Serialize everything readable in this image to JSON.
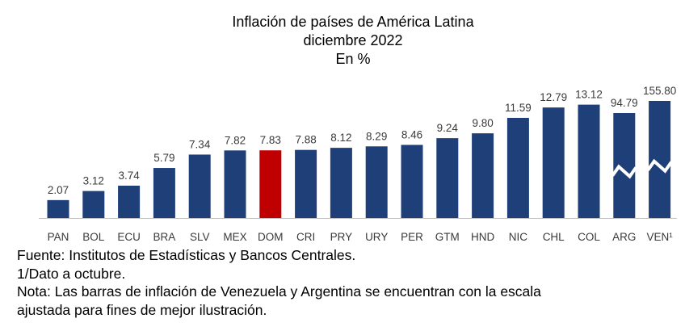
{
  "chart_data": {
    "type": "bar",
    "title": "Inflación de países de América Latina",
    "subtitle": "diciembre 2022",
    "unit_label": "En %",
    "categories": [
      "PAN",
      "BOL",
      "ECU",
      "BRA",
      "SLV",
      "MEX",
      "DOM",
      "CRI",
      "PRY",
      "URY",
      "PER",
      "GTM",
      "HND",
      "NIC",
      "CHL",
      "COL",
      "ARG",
      "VEN¹"
    ],
    "values": [
      2.07,
      3.12,
      3.74,
      5.79,
      7.34,
      7.82,
      7.83,
      7.88,
      8.12,
      8.29,
      8.46,
      9.24,
      9.8,
      11.59,
      12.79,
      13.12,
      94.79,
      155.8
    ],
    "value_labels": [
      "2.07",
      "3.12",
      "3.74",
      "5.79",
      "7.34",
      "7.82",
      "7.83",
      "7.88",
      "8.12",
      "8.29",
      "8.46",
      "9.24",
      "9.80",
      "11.59",
      "12.79",
      "13.12",
      "94.79",
      "155.80"
    ],
    "highlight_category": "DOM",
    "broken_scale_categories": [
      "ARG",
      "VEN¹"
    ],
    "xlabel": "",
    "ylabel": "",
    "grid": false,
    "legend": "none",
    "colors": {
      "bar": "#1F3F79",
      "highlight": "#C00000",
      "label": "#3A3A3A",
      "axis": "#BFBFBF"
    }
  },
  "notes": {
    "source": "Fuente: Institutos de Estadísticas y Bancos Centrales.",
    "footnote": "1/Dato a octubre.",
    "note_line1": "Nota: Las barras de inflación de Venezuela y Argentina se encuentran con la escala",
    "note_line2": "ajustada para fines de mejor ilustración."
  }
}
